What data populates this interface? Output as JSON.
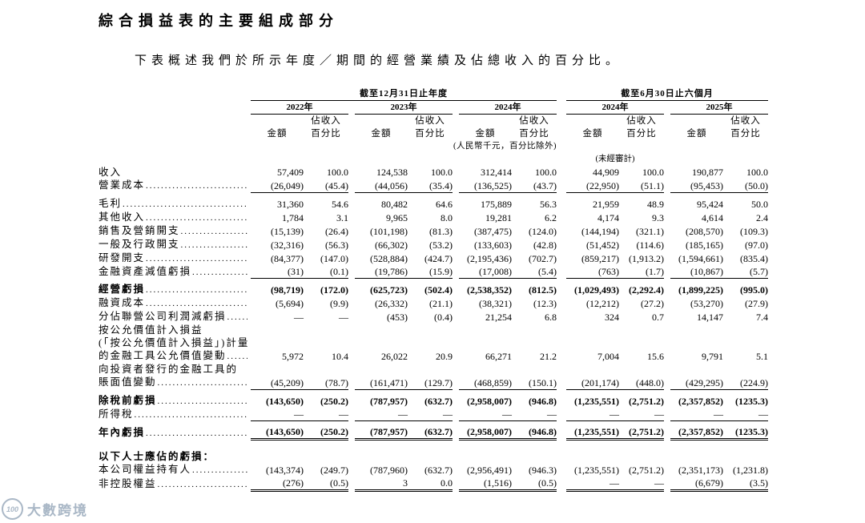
{
  "page": {
    "title": "綜合損益表的主要組成部分",
    "intro": "下表概述我們於所示年度／期間的經營業績及佔總收入的百分比。"
  },
  "table": {
    "group_headers": [
      {
        "label": "截至12月31日止年度"
      },
      {
        "label": "截至6月30日止六個月"
      }
    ],
    "years": [
      "2022年",
      "2023年",
      "2024年",
      "2024年",
      "2025年"
    ],
    "col_amount": "金額",
    "col_pct_line1": "佔收入",
    "col_pct_line2": "百分比",
    "unit_note": "(人民幣千元，百分比除外)",
    "unaudited_note": "(未經審計)",
    "rows": [
      {
        "label": "收入",
        "dots": false,
        "values": [
          "57,409",
          "100.0",
          "124,538",
          "100.0",
          "312,414",
          "100.0",
          "44,909",
          "100.0",
          "190,877",
          "100.0"
        ]
      },
      {
        "label": "營業成本",
        "underline": "single",
        "values": [
          "(26,049)",
          "(45.4)",
          "(44,056)",
          "(35.4)",
          "(136,525)",
          "(43.7)",
          "(22,950)",
          "(51.1)",
          "(95,453)",
          "(50.0)"
        ]
      },
      {
        "label": "毛利",
        "gap": 5,
        "values": [
          "31,360",
          "54.6",
          "80,482",
          "64.6",
          "175,889",
          "56.3",
          "21,959",
          "48.9",
          "95,424",
          "50.0"
        ]
      },
      {
        "label": "其他收入",
        "values": [
          "1,784",
          "3.1",
          "9,965",
          "8.0",
          "19,281",
          "6.2",
          "4,174",
          "9.3",
          "4,614",
          "2.4"
        ]
      },
      {
        "label": "銷售及營銷開支",
        "values": [
          "(15,139)",
          "(26.4)",
          "(101,198)",
          "(81.3)",
          "(387,475)",
          "(124.0)",
          "(144,194)",
          "(321.1)",
          "(208,570)",
          "(109.3)"
        ]
      },
      {
        "label": "一般及行政開支",
        "values": [
          "(32,316)",
          "(56.3)",
          "(66,302)",
          "(53.2)",
          "(133,603)",
          "(42.8)",
          "(51,452)",
          "(114.6)",
          "(185,165)",
          "(97.0)"
        ]
      },
      {
        "label": "研發開支",
        "values": [
          "(84,377)",
          "(147.0)",
          "(528,884)",
          "(424.7)",
          "(2,195,436)",
          "(702.7)",
          "(859,217)",
          "(1,913.2)",
          "(1,594,661)",
          "(835.4)"
        ]
      },
      {
        "label": "金融資產減值虧損",
        "underline": "single",
        "values": [
          "(31)",
          "(0.1)",
          "(19,786)",
          "(15.9)",
          "(17,008)",
          "(5.4)",
          "(763)",
          "(1.7)",
          "(10,867)",
          "(5.7)"
        ]
      },
      {
        "label": "經營虧損",
        "bold": true,
        "gap": 5,
        "values": [
          "(98,719)",
          "(172.0)",
          "(625,723)",
          "(502.4)",
          "(2,538,352)",
          "(812.5)",
          "(1,029,493)",
          "(2,292.4)",
          "(1,899,225)",
          "(995.0)"
        ]
      },
      {
        "label": "融資成本",
        "values": [
          "(5,694)",
          "(9.9)",
          "(26,332)",
          "(21.1)",
          "(38,321)",
          "(12.3)",
          "(12,212)",
          "(27.2)",
          "(53,270)",
          "(27.9)"
        ]
      },
      {
        "label": "分佔聯營公司利潤減虧損",
        "values": [
          "—",
          "—",
          "(453)",
          "(0.4)",
          "21,254",
          "6.8",
          "324",
          "0.7",
          "14,147",
          "7.4"
        ]
      },
      {
        "label_lines": [
          "按公允價值計入損益",
          "(「按公允價值計入損益」)計量",
          "的金融工具公允價值變動"
        ],
        "values": [
          "5,972",
          "10.4",
          "26,022",
          "20.9",
          "66,271",
          "21.2",
          "7,004",
          "15.6",
          "9,791",
          "5.1"
        ]
      },
      {
        "label_lines": [
          "向投資者發行的金融工具的",
          "賬面值變動"
        ],
        "underline": "single",
        "values": [
          "(45,209)",
          "(78.7)",
          "(161,471)",
          "(129.7)",
          "(468,859)",
          "(150.1)",
          "(201,174)",
          "(448.0)",
          "(429,295)",
          "(224.9)"
        ]
      },
      {
        "label": "除稅前虧損",
        "bold": true,
        "gap": 5,
        "values": [
          "(143,650)",
          "(250.2)",
          "(787,957)",
          "(632.7)",
          "(2,958,007)",
          "(946.8)",
          "(1,235,551)",
          "(2,751.2)",
          "(2,357,852)",
          "(1235.3)"
        ]
      },
      {
        "label": "所得稅",
        "underline": "single",
        "values": [
          "—",
          "—",
          "—",
          "—",
          "—",
          "—",
          "—",
          "—",
          "—",
          "—"
        ]
      },
      {
        "label": "年內虧損",
        "bold": true,
        "gap": 5,
        "underline": "double",
        "values": [
          "(143,650)",
          "(250.2)",
          "(787,957)",
          "(632.7)",
          "(2,958,007)",
          "(946.8)",
          "(1,235,551)",
          "(2,751.2)",
          "(2,357,852)",
          "(1235.3)"
        ]
      },
      {
        "label": "以下人士應佔的虧損：",
        "bold": true,
        "gap": 12,
        "dots": false,
        "values": null
      },
      {
        "label": "本公司權益持有人",
        "values": [
          "(143,374)",
          "(249.7)",
          "(787,960)",
          "(632.7)",
          "(2,956,491)",
          "(946.3)",
          "(1,235,551)",
          "(2,751.2)",
          "(2,351,173)",
          "(1,231.8)"
        ]
      },
      {
        "label": "非控股權益",
        "underline": "double",
        "values": [
          "(276)",
          "(0.5)",
          "3",
          "0.0",
          "(1,516)",
          "(0.5)",
          "—",
          "—",
          "(6,679)",
          "(3.5)"
        ]
      }
    ]
  },
  "watermark": {
    "logo_text": "100",
    "brand": "大數跨境"
  }
}
